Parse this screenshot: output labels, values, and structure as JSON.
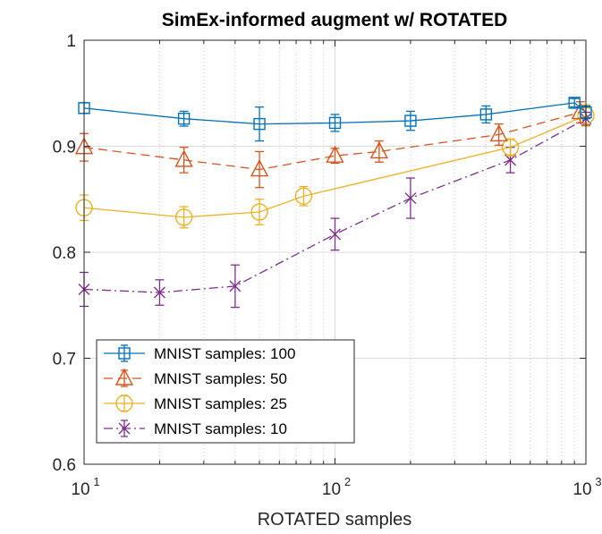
{
  "chart_data": {
    "type": "line",
    "title": "SimEx-informed augment w/ ROTATED",
    "xlabel": "ROTATED samples",
    "ylabel": "",
    "xscale": "log",
    "xlim": [
      10,
      1000
    ],
    "ylim": [
      0.6,
      1.0
    ],
    "yticks": [
      0.6,
      0.7,
      0.8,
      0.9,
      1.0
    ],
    "ytick_labels": [
      "0.6",
      "0.7",
      "0.8",
      "0.9",
      "1"
    ],
    "xticks": [
      10,
      100,
      1000
    ],
    "xtick_labels": [
      {
        "base": "10",
        "exp": "1"
      },
      {
        "base": "10",
        "exp": "2"
      },
      {
        "base": "10",
        "exp": "3"
      }
    ],
    "grid": true,
    "legend_position": "bottom-left",
    "series": [
      {
        "name": "MNIST samples: 100",
        "color": "#0072BD",
        "marker": "square",
        "linestyle": "solid",
        "x": [
          10,
          25,
          50,
          100,
          200,
          400,
          900,
          1000
        ],
        "y": [
          0.936,
          0.926,
          0.921,
          0.922,
          0.924,
          0.93,
          0.941,
          0.932
        ],
        "err": [
          0.005,
          0.007,
          0.016,
          0.008,
          0.009,
          0.008,
          0.004,
          0.006
        ]
      },
      {
        "name": "MNIST samples: 50",
        "color": "#D95319",
        "marker": "triangle",
        "linestyle": "dashed",
        "x": [
          10,
          25,
          50,
          100,
          150,
          450,
          950
        ],
        "y": [
          0.899,
          0.887,
          0.878,
          0.891,
          0.895,
          0.911,
          0.932
        ],
        "err": [
          0.013,
          0.012,
          0.017,
          0.007,
          0.01,
          0.01,
          0.01
        ]
      },
      {
        "name": "MNIST samples: 25",
        "color": "#EDB120",
        "marker": "circle",
        "linestyle": "solid",
        "x": [
          10,
          25,
          50,
          75,
          500,
          1000
        ],
        "y": [
          0.842,
          0.833,
          0.838,
          0.853,
          0.899,
          0.929
        ],
        "err": [
          0.012,
          0.01,
          0.012,
          0.009,
          0.008,
          0.01
        ]
      },
      {
        "name": "MNIST samples: 10",
        "color": "#7E2F8E",
        "marker": "x",
        "linestyle": "dashdot",
        "x": [
          10,
          20,
          40,
          100,
          200,
          500,
          1000
        ],
        "y": [
          0.765,
          0.762,
          0.768,
          0.817,
          0.851,
          0.887,
          0.926
        ],
        "err": [
          0.016,
          0.012,
          0.02,
          0.015,
          0.019,
          0.012,
          0.006
        ]
      }
    ]
  }
}
